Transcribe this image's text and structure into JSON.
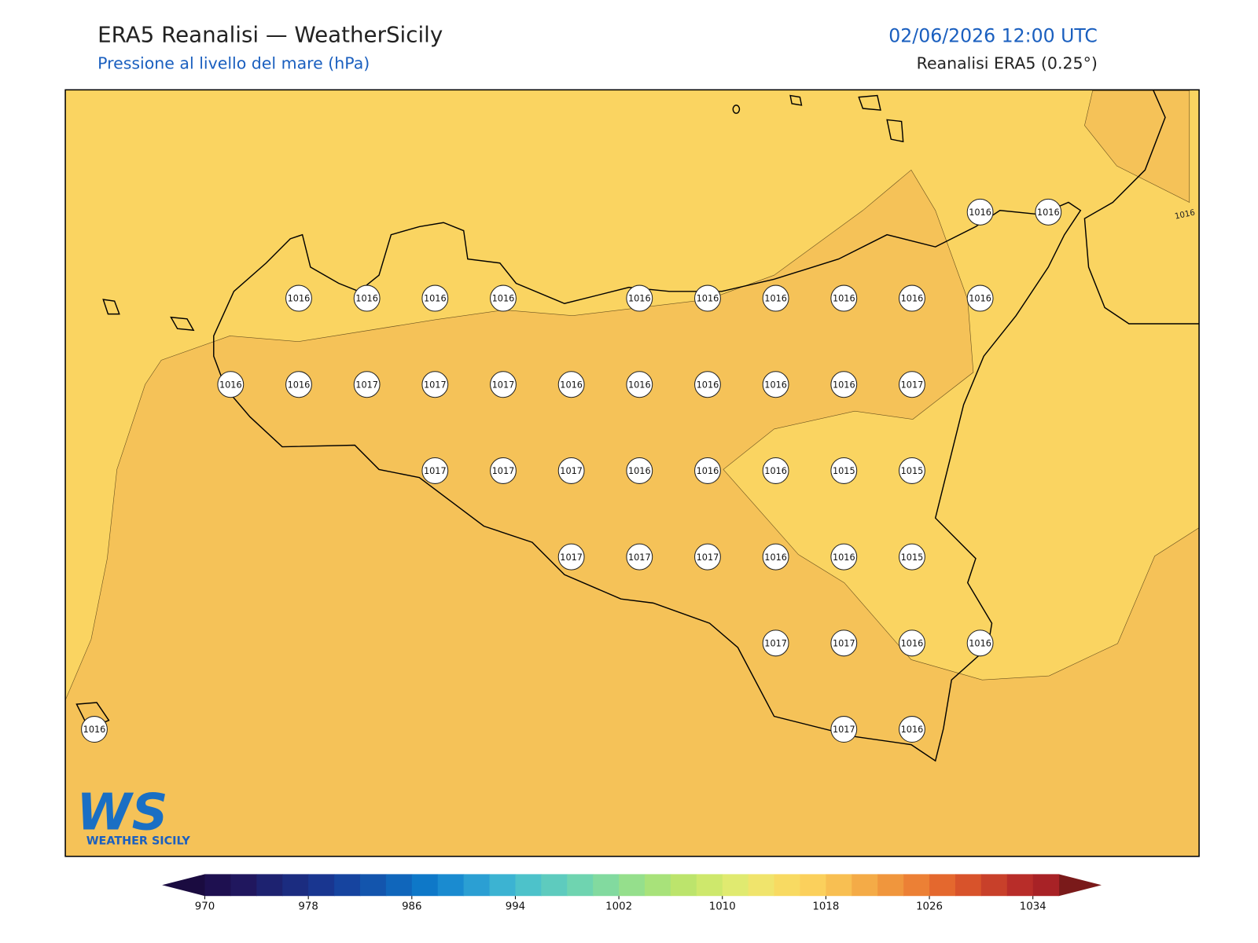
{
  "header": {
    "title": "ERA5 Reanalisi — WeatherSicily",
    "subtitle": "Pressione al livello del mare (hPa)",
    "date": "02/06/2026 12:00 UTC",
    "source": "Reanalisi ERA5 (0.25°)"
  },
  "map": {
    "stations": [
      [
        null,
        null,
        null,
        null,
        null,
        null,
        null,
        null,
        null,
        null,
        null,
        null,
        null,
        1016,
        1016
      ],
      [
        null,
        null,
        null,
        1016,
        1016,
        1016,
        1016,
        null,
        1016,
        1016,
        1016,
        1016,
        1016,
        1016,
        null
      ],
      [
        null,
        null,
        1016,
        1016,
        1017,
        1017,
        1017,
        1016,
        1016,
        1016,
        1016,
        1016,
        1017,
        null,
        null
      ],
      [
        null,
        null,
        null,
        null,
        null,
        1017,
        1017,
        1017,
        1016,
        1016,
        1016,
        1015,
        1015,
        null,
        null
      ],
      [
        null,
        null,
        null,
        null,
        null,
        null,
        null,
        1017,
        1017,
        1017,
        1016,
        1016,
        1015,
        null,
        null
      ],
      [
        null,
        null,
        null,
        null,
        null,
        null,
        null,
        null,
        null,
        null,
        1017,
        1017,
        1016,
        1016,
        null
      ],
      [
        1016,
        null,
        null,
        null,
        null,
        null,
        null,
        null,
        null,
        null,
        null,
        1017,
        1016,
        null,
        null
      ]
    ],
    "contour_label": 1016
  },
  "logo": {
    "mark": "WS",
    "name": "WEATHER SICILY"
  },
  "colorbar": {
    "range": [
      970,
      1036
    ],
    "ticks": [
      970,
      978,
      986,
      994,
      1002,
      1010,
      1018,
      1026,
      1034
    ],
    "colors": [
      "#1e1050",
      "#20175e",
      "#1d2270",
      "#1b2c80",
      "#193690",
      "#16449f",
      "#1355ad",
      "#1066bb",
      "#0e78c8",
      "#1a8bd0",
      "#2b9fd3",
      "#3cb3d2",
      "#4dc2ca",
      "#5ecbbe",
      "#6fd4b0",
      "#82da9f",
      "#95df8c",
      "#a8e27a",
      "#bce46c",
      "#cee86c",
      "#e0ea70",
      "#f0e46c",
      "#f8da62",
      "#fbd05c",
      "#f8bf52",
      "#f4ab47",
      "#f0963d",
      "#ec8035",
      "#e4682e",
      "#d8532b",
      "#c8402a",
      "#b82d29",
      "#a82226"
    ],
    "under_color": "#1a0b40",
    "over_color": "#7a1a1a"
  }
}
